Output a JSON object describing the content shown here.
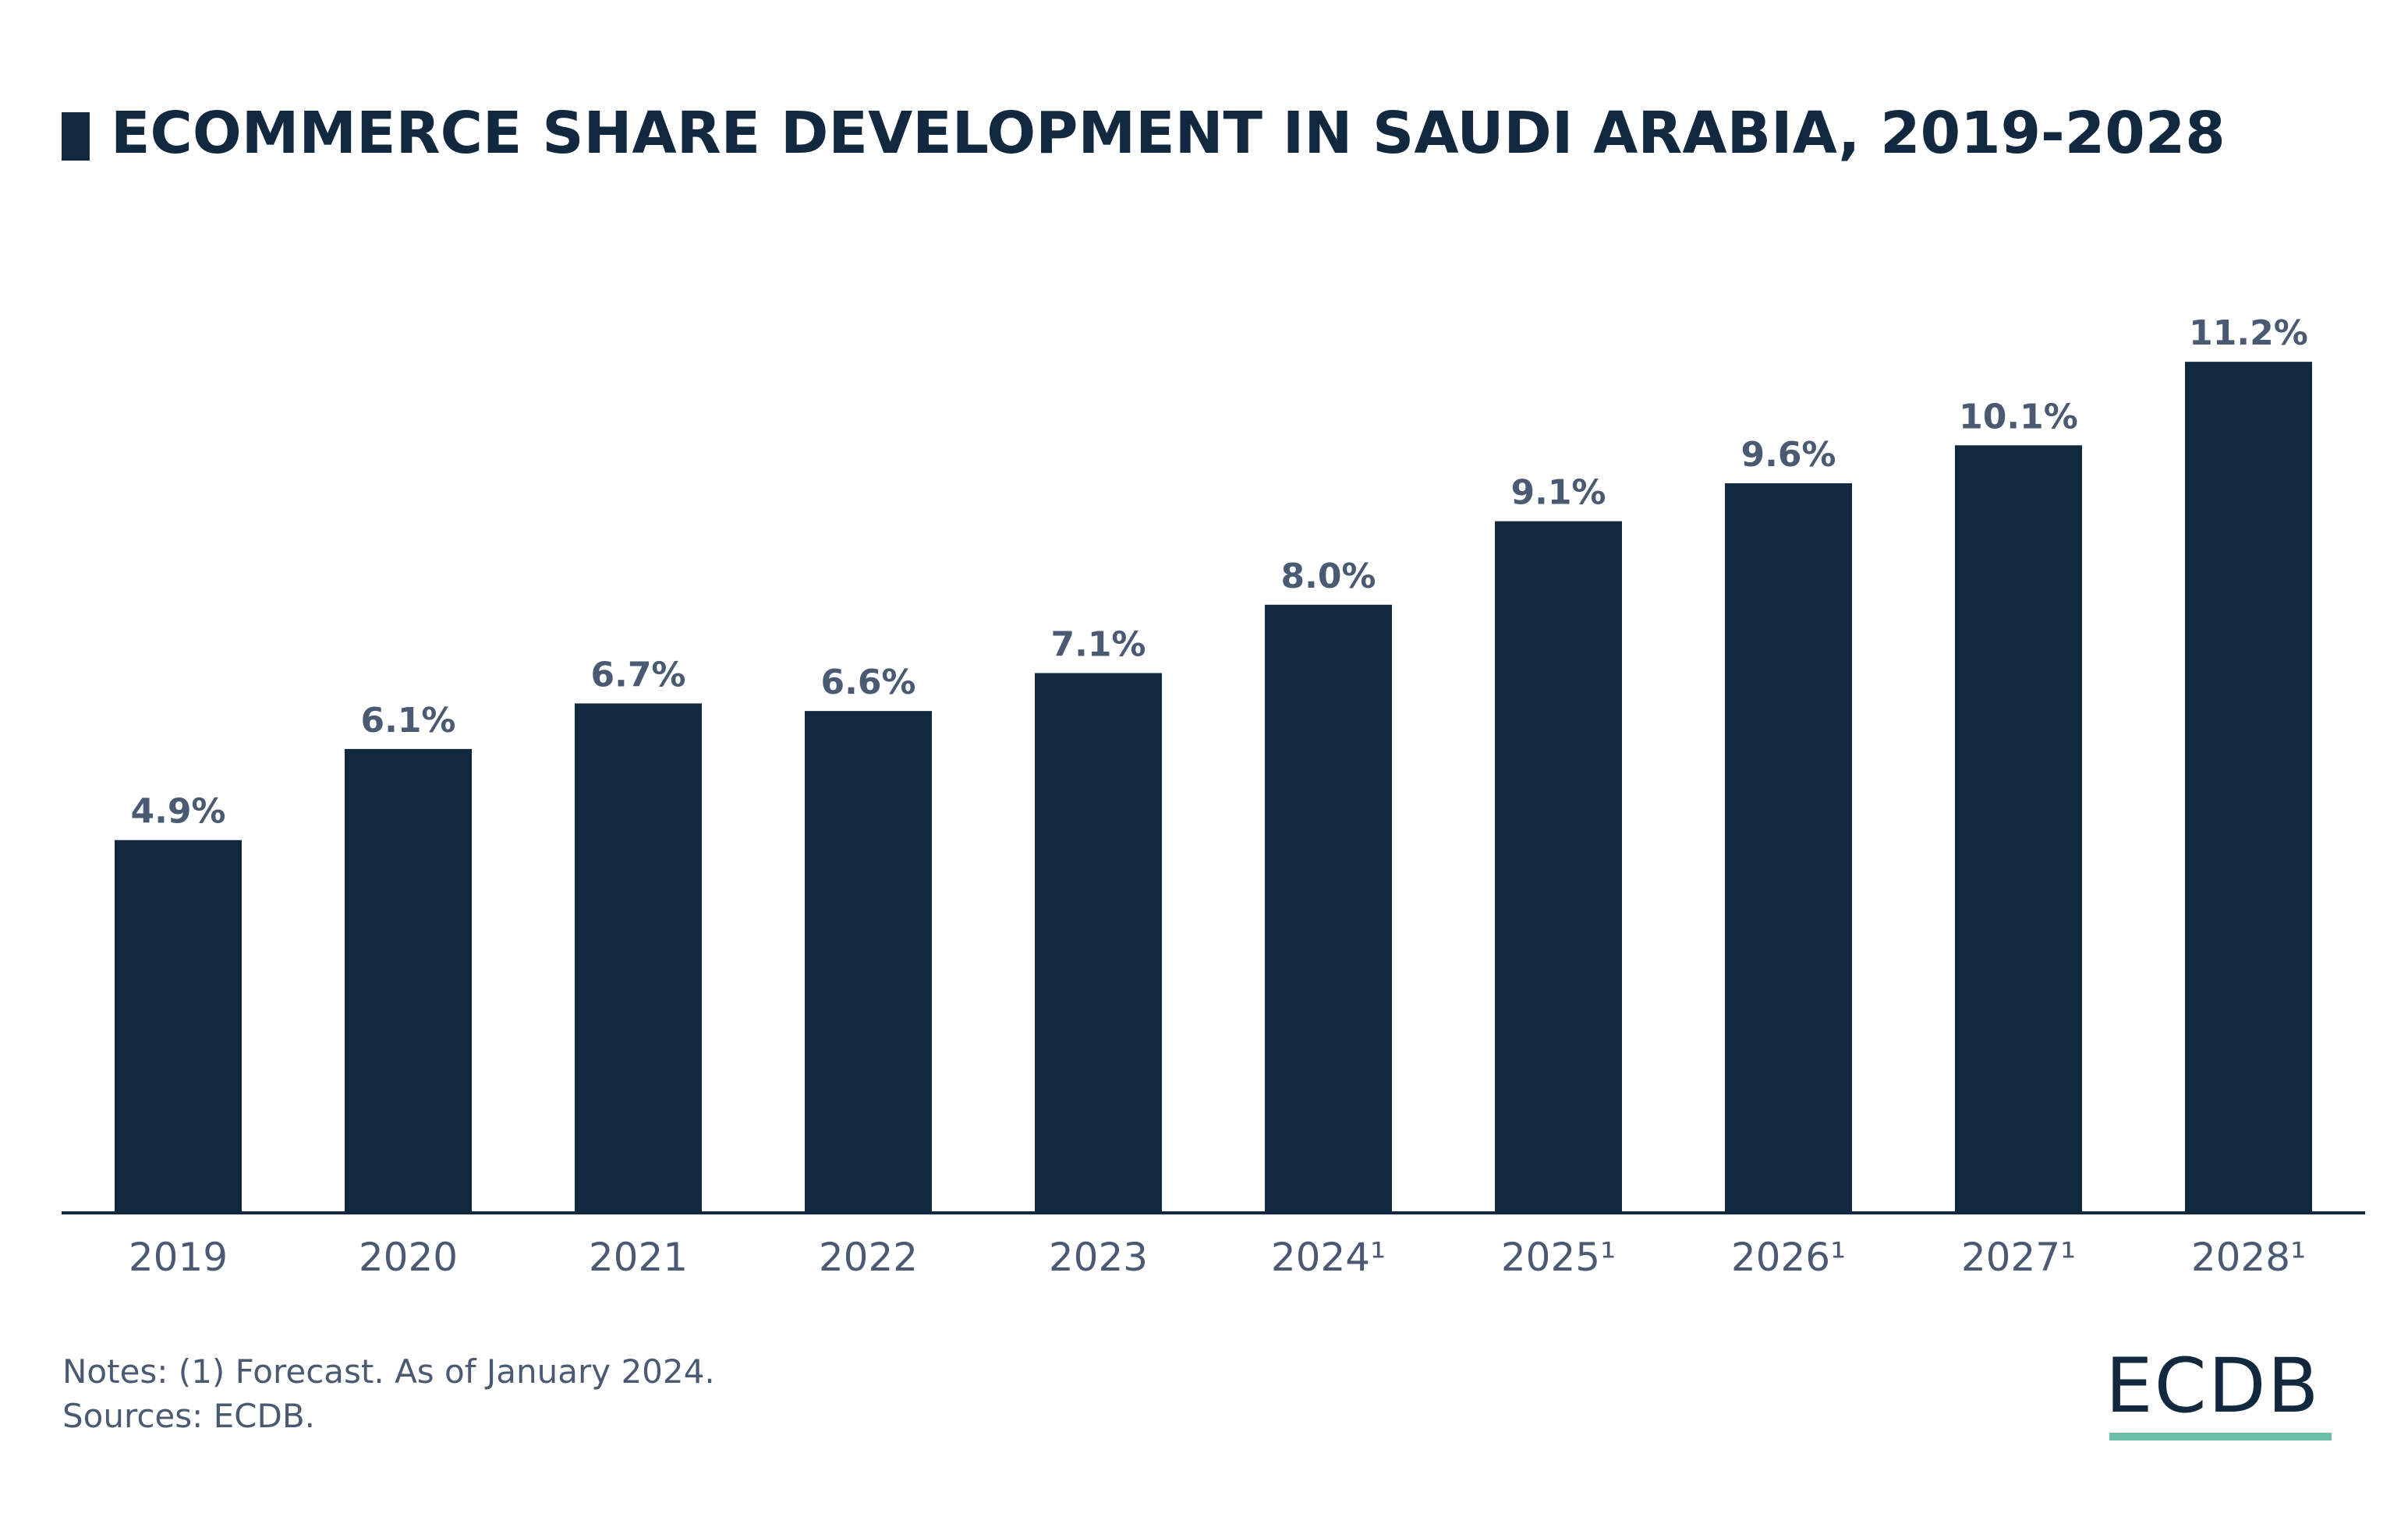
{
  "title": "ECOMMERCE SHARE DEVELOPMENT IN SAUDI ARABIA, 2019-2028",
  "notes": "Notes: (1) Forecast. As of January 2024.",
  "sources": "Sources: ECDB.",
  "logo": "ECDB",
  "colors": {
    "bar": "#12283f",
    "label": "#4a5a72",
    "accent": "#6cbfa6"
  },
  "chart_data": {
    "type": "bar",
    "title": "ECOMMERCE SHARE DEVELOPMENT IN SAUDI ARABIA, 2019-2028",
    "categories": [
      "2019",
      "2020",
      "2021",
      "2022",
      "2023",
      "2024¹",
      "2025¹",
      "2026¹",
      "2027¹",
      "2028¹"
    ],
    "values": [
      4.9,
      6.1,
      6.7,
      6.6,
      7.1,
      8.0,
      9.1,
      9.6,
      10.1,
      11.2
    ],
    "data_labels": [
      "4.9%",
      "6.1%",
      "6.7%",
      "6.6%",
      "7.1%",
      "8.0%",
      "9.1%",
      "9.6%",
      "10.1%",
      "11.2%"
    ],
    "xlabel": "",
    "ylabel": "",
    "ylim": [
      0,
      12
    ],
    "grid": false,
    "legend": "none"
  }
}
